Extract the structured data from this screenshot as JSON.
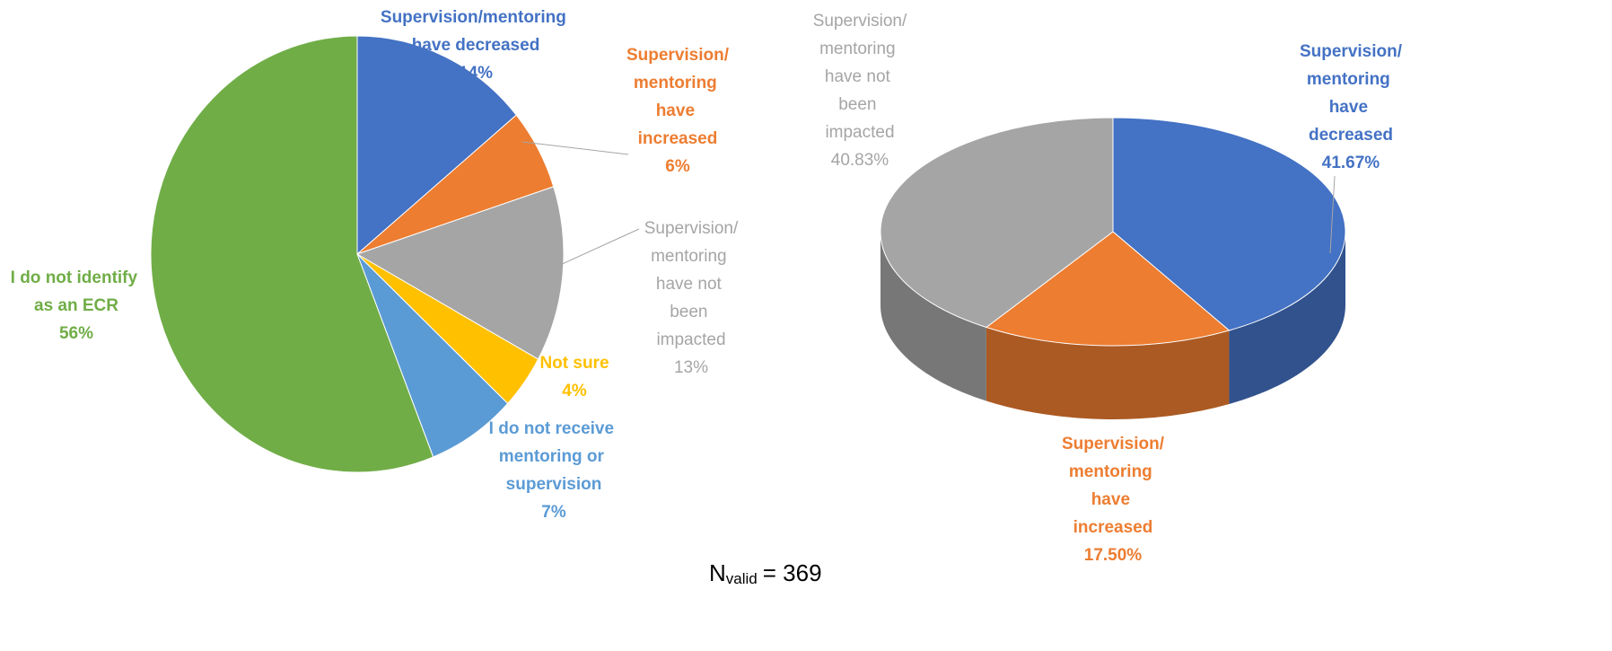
{
  "chart_data": [
    {
      "type": "pie",
      "categories": [
        "Supervision/mentoring have decreased",
        "Supervision/mentoring have increased",
        "Supervision/mentoring have not been impacted",
        "Not sure",
        "I do not receive mentoring or supervision",
        "I do not identify as an ECR"
      ],
      "values": [
        14,
        6,
        13,
        4,
        7,
        56
      ],
      "value_labels": [
        "14%",
        "6%",
        "13%",
        "4%",
        "7%",
        "56%"
      ],
      "colors": [
        "#4472c4",
        "#ed7d31",
        "#a5a5a5",
        "#ffc000",
        "#5b9bd5",
        "#70ad47"
      ]
    },
    {
      "type": "pie",
      "three_d": true,
      "categories": [
        "Supervision/mentoring have decreased",
        "Supervision/mentoring have increased",
        "Supervision/mentoring have not been impacted"
      ],
      "values": [
        41.67,
        17.5,
        40.83
      ],
      "value_labels": [
        "41.67%",
        "17.50%",
        "40.83%"
      ],
      "colors": [
        "#4472c4",
        "#ed7d31",
        "#a5a5a5"
      ]
    }
  ],
  "footnote": {
    "main": "N",
    "subscript": "valid",
    "rest": "= 369"
  }
}
